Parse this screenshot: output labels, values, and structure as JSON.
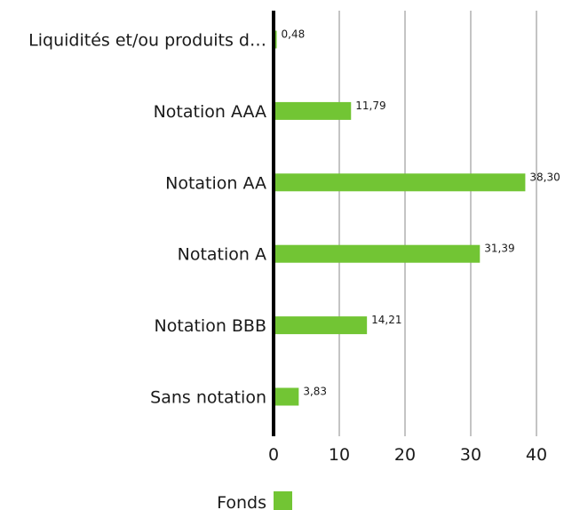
{
  "chart_data": {
    "type": "bar",
    "orientation": "horizontal",
    "categories": [
      "Liquidités et/ou produits d…",
      "Notation AAA",
      "Notation AA",
      "Notation A",
      "Notation BBB",
      "Sans notation"
    ],
    "series": [
      {
        "name": "Fonds",
        "values": [
          0.48,
          11.79,
          38.3,
          31.39,
          14.21,
          3.83
        ],
        "labels": [
          "0,48",
          "11,79",
          "38,30",
          "31,39",
          "14,21",
          "3,83"
        ],
        "color": "#72c534"
      }
    ],
    "xlim": [
      0,
      40
    ],
    "xticks": [
      0,
      10,
      20,
      30,
      40
    ],
    "xtick_labels": [
      "0",
      "10",
      "20",
      "30",
      "40"
    ],
    "grid": "vertical",
    "legend": "bottom",
    "title": "",
    "xlabel": "",
    "ylabel": ""
  }
}
